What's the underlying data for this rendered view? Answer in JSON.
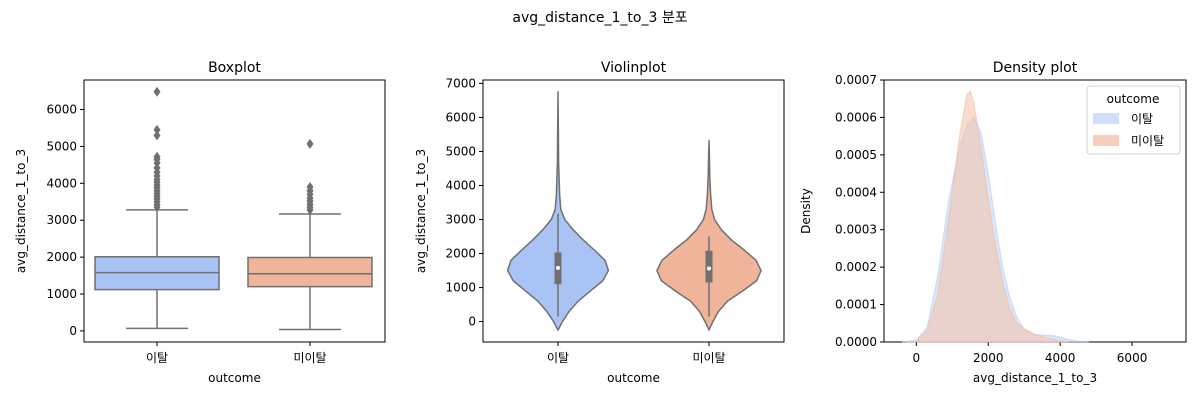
{
  "suptitle": "avg_distance_1_to_3 분포",
  "colors": {
    "churn": "#a9c3f5",
    "retain": "#efb499",
    "churn_kde": "#c3d6f8",
    "retain_kde": "#f4c4ad",
    "line": "#707070"
  },
  "chart_data": [
    {
      "type": "box",
      "title": "Boxplot",
      "xlabel": "outcome",
      "ylabel": "avg_distance_1_to_3",
      "categories": [
        "이탈",
        "미이탈"
      ],
      "ylim": [
        -300,
        6800
      ],
      "yticks": [
        0,
        1000,
        2000,
        3000,
        4000,
        5000,
        6000
      ],
      "ytick_labels": [
        "0",
        "1000",
        "2000",
        "3000",
        "4000",
        "5000",
        "6000"
      ],
      "boxes": [
        {
          "name": "이탈",
          "whislo": 70,
          "q1": 1120,
          "med": 1580,
          "q3": 2010,
          "whishi": 3280,
          "fliers": [
            3350,
            3420,
            3500,
            3580,
            3650,
            3720,
            3800,
            3880,
            3950,
            4030,
            4100,
            4200,
            4300,
            4420,
            4550,
            4650,
            4720,
            5300,
            5450,
            6480
          ]
        },
        {
          "name": "미이탈",
          "whislo": 40,
          "q1": 1200,
          "med": 1550,
          "q3": 1990,
          "whishi": 3170,
          "fliers": [
            3280,
            3350,
            3430,
            3520,
            3600,
            3700,
            3800,
            3900,
            5070
          ]
        }
      ]
    },
    {
      "type": "violin",
      "title": "Violinplot",
      "xlabel": "outcome",
      "ylabel": "avg_distance_1_to_3",
      "categories": [
        "이탈",
        "미이탈"
      ],
      "ylim": [
        -600,
        7100
      ],
      "yticks": [
        0,
        1000,
        2000,
        3000,
        4000,
        5000,
        6000,
        7000
      ],
      "ytick_labels": [
        "0",
        "1000",
        "2000",
        "3000",
        "4000",
        "5000",
        "6000",
        "7000"
      ],
      "violins": [
        {
          "name": "이탈",
          "min": -250,
          "max": 6750,
          "q1": 1100,
          "med": 1580,
          "q3": 2030,
          "profile": [
            [
              -250,
              0
            ],
            [
              0,
              0.08
            ],
            [
              300,
              0.2
            ],
            [
              600,
              0.36
            ],
            [
              900,
              0.58
            ],
            [
              1200,
              0.8
            ],
            [
              1500,
              0.9
            ],
            [
              1800,
              0.84
            ],
            [
              2100,
              0.65
            ],
            [
              2400,
              0.45
            ],
            [
              2700,
              0.27
            ],
            [
              3000,
              0.12
            ],
            [
              3300,
              0.05
            ],
            [
              3700,
              0.03
            ],
            [
              4200,
              0.02
            ],
            [
              4700,
              0.01
            ],
            [
              5500,
              0.007
            ],
            [
              6750,
              0
            ]
          ]
        },
        {
          "name": "미이탈",
          "min": -250,
          "max": 5320,
          "q1": 1150,
          "med": 1560,
          "q3": 2080,
          "profile": [
            [
              -250,
              0
            ],
            [
              0,
              0.07
            ],
            [
              300,
              0.17
            ],
            [
              600,
              0.33
            ],
            [
              900,
              0.6
            ],
            [
              1200,
              0.85
            ],
            [
              1500,
              0.93
            ],
            [
              1800,
              0.84
            ],
            [
              2100,
              0.63
            ],
            [
              2400,
              0.4
            ],
            [
              2700,
              0.22
            ],
            [
              3000,
              0.1
            ],
            [
              3300,
              0.05
            ],
            [
              3700,
              0.03
            ],
            [
              4200,
              0.015
            ],
            [
              4800,
              0.008
            ],
            [
              5320,
              0
            ]
          ]
        }
      ]
    },
    {
      "type": "area",
      "title": "Density plot",
      "xlabel": "avg_distance_1_to_3",
      "ylabel": "Density",
      "xlim": [
        -900,
        7500
      ],
      "ylim": [
        0,
        0.0007
      ],
      "xticks": [
        0,
        2000,
        4000,
        6000
      ],
      "xtick_labels": [
        "0",
        "2000",
        "4000",
        "6000"
      ],
      "yticks": [
        0,
        0.0001,
        0.0002,
        0.0003,
        0.0004,
        0.0005,
        0.0006,
        0.0007
      ],
      "ytick_labels": [
        "0.0000",
        "0.0001",
        "0.0002",
        "0.0003",
        "0.0004",
        "0.0005",
        "0.0006",
        "0.0007"
      ],
      "legend_title": "outcome",
      "legend_position": "top-right",
      "series": [
        {
          "name": "이탈",
          "x": [
            -400,
            0,
            300,
            600,
            900,
            1200,
            1400,
            1600,
            1800,
            2000,
            2200,
            2400,
            2600,
            2800,
            3000,
            3300,
            3600,
            3900,
            4200,
            4500,
            4800
          ],
          "y": [
            0,
            5e-06,
            4e-05,
            0.00018,
            0.00038,
            0.00052,
            0.00058,
            0.0006,
            0.00056,
            0.00045,
            0.00032,
            0.0002,
            0.00012,
            6.5e-05,
            3.5e-05,
            2e-05,
            1.8e-05,
            1.6e-05,
            8e-06,
            2e-06,
            0
          ]
        },
        {
          "name": "미이탈",
          "x": [
            -300,
            0,
            300,
            600,
            900,
            1200,
            1400,
            1500,
            1600,
            1800,
            2000,
            2200,
            2400,
            2600,
            2800,
            3000,
            3300,
            3600,
            3900,
            4200
          ],
          "y": [
            0,
            2e-06,
            3e-05,
            0.00013,
            0.00033,
            0.00055,
            0.00066,
            0.00067,
            0.00064,
            0.00052,
            0.00038,
            0.00026,
            0.00016,
            9e-05,
            5e-05,
            3.5e-05,
            2e-05,
            1.2e-05,
            5e-06,
            0
          ]
        }
      ]
    }
  ]
}
